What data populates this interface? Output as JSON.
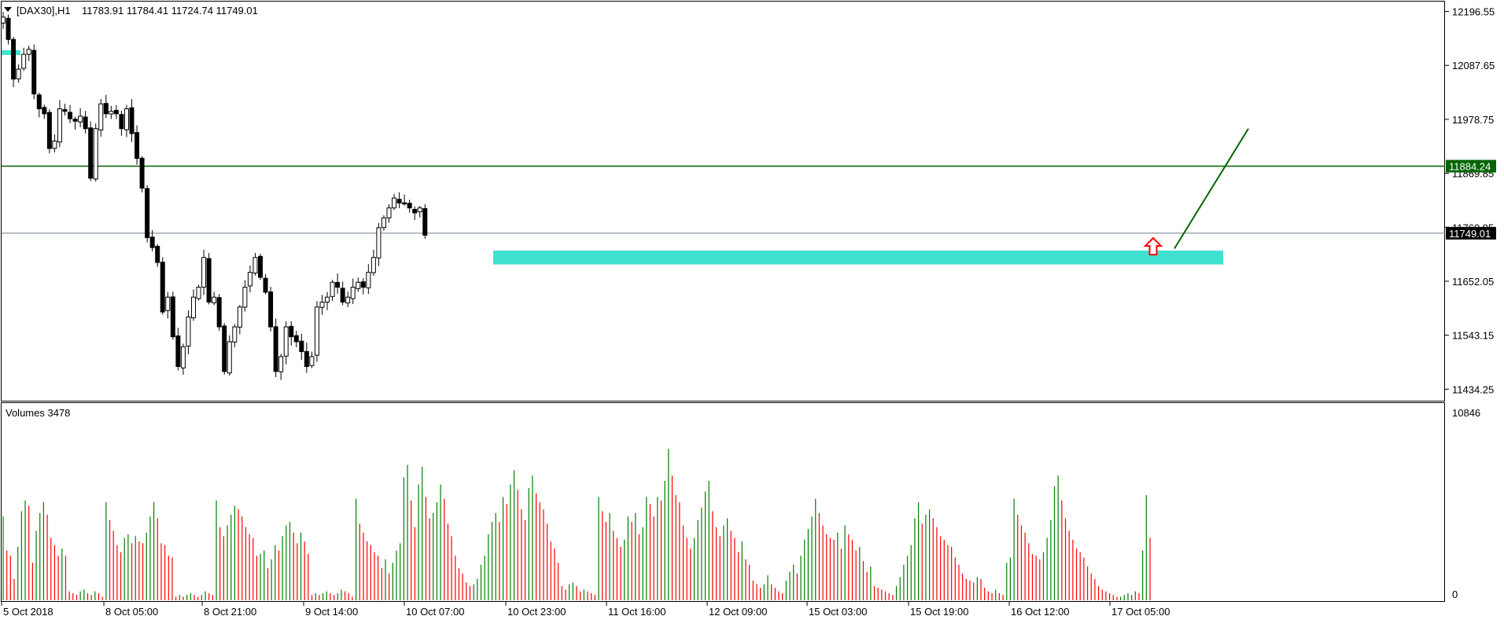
{
  "header": {
    "symbol": "[DAX30],H1",
    "ohlc": "11783.91 11784.41 11724.74 11749.01"
  },
  "volume_panel": {
    "title": "Volumes 3478",
    "scale_max": "10846",
    "scale_min": "0"
  },
  "colors": {
    "background": "#ffffff",
    "candle": "#000000",
    "zone": "#40e0d0",
    "resistance_line": "#006400",
    "trend_line": "#006400",
    "current_price_line": "#708090",
    "volume_up": "#008000",
    "volume_down": "#ff0000",
    "arrow": "#ff0000"
  },
  "chart_data": [
    {
      "type": "candlestick",
      "title": "[DAX30],H1",
      "y_ticks": [
        "12196.55",
        "12087.65",
        "11978.75",
        "11869.85",
        "11760.95",
        "11652.05",
        "11543.15",
        "11434.25"
      ],
      "ylim": [
        11411,
        12218
      ],
      "x_ticks": [
        "5 Oct 2018",
        "8 Oct 05:00",
        "8 Oct 21:00",
        "9 Oct 14:00",
        "10 Oct 07:00",
        "10 Oct 23:00",
        "11 Oct 16:00",
        "12 Oct 09:00",
        "15 Oct 03:00",
        "15 Oct 19:00",
        "16 Oct 12:00",
        "17 Oct 05:00"
      ],
      "y_range_markers": [
        {
          "label": "11884.24",
          "value": 11884.24,
          "style": "horizontal line, green background label"
        },
        {
          "label": "11749.01",
          "value": 11749.01,
          "style": "current price, black background label"
        }
      ],
      "support_zone": {
        "low": 11686,
        "high": 11714
      },
      "trend_projection": {
        "from_value": 11718,
        "to_value": 11960
      },
      "close_path": [
        12185,
        12140,
        12060,
        12080,
        12110,
        12120,
        12030,
        12000,
        11990,
        11920,
        11935,
        12000,
        11995,
        11980,
        11975,
        11985,
        11960,
        11860,
        11960,
        12010,
        11990,
        11995,
        11990,
        11960,
        12000,
        11950,
        11900,
        11840,
        11740,
        11720,
        11690,
        11590,
        11620,
        11540,
        11480,
        11520,
        11580,
        11620,
        11640,
        11700,
        11610,
        11620,
        11560,
        11470,
        11530,
        11560,
        11600,
        11640,
        11670,
        11700,
        11660,
        11630,
        11560,
        11470,
        11500,
        11560,
        11540,
        11530,
        11510,
        11480,
        11500,
        11600,
        11610,
        11620,
        11650,
        11640,
        11610,
        11620,
        11640,
        11650,
        11640,
        11670,
        11700,
        11760,
        11780,
        11800,
        11820,
        11810,
        11810,
        11800,
        11790,
        11800,
        11745
      ]
    },
    {
      "type": "bar",
      "title": "Volumes 3478",
      "ylim": [
        0,
        10846
      ],
      "up_color": "#008000",
      "down_color": "#ff0000",
      "values": [
        4700,
        2800,
        2500,
        1200,
        3000,
        5000,
        5600,
        5300,
        2100,
        3900,
        4900,
        5500,
        4800,
        3500,
        3100,
        2500,
        2900,
        2500,
        500,
        400,
        300,
        500,
        600,
        400,
        300,
        500,
        400,
        200,
        5500,
        4500,
        3900,
        3100,
        2700,
        3500,
        3700,
        3200,
        3600,
        3300,
        3200,
        3800,
        4700,
        5500,
        4600,
        3200,
        3100,
        2500,
        2400,
        200,
        300,
        200,
        300,
        400,
        300,
        200,
        300,
        500,
        400,
        300,
        5600,
        4100,
        3600,
        4200,
        4800,
        5300,
        5100,
        4700,
        4100,
        3700,
        3500,
        2500,
        2600,
        2800,
        1800,
        2300,
        3100,
        2800,
        3600,
        4200,
        4400,
        3800,
        3200,
        3800,
        3300,
        2600,
        300,
        400,
        300,
        400,
        500,
        400,
        300,
        400,
        600,
        500,
        400,
        200,
        5700,
        4300,
        3800,
        3300,
        3100,
        2700,
        2500,
        1800,
        2300,
        1500,
        2100,
        2800,
        3200,
        6900,
        7600,
        5600,
        4100,
        6500,
        7500,
        5800,
        4600,
        4900,
        5500,
        6500,
        5700,
        4300,
        3600,
        2500,
        1800,
        1500,
        1000,
        800,
        900,
        1200,
        2000,
        2500,
        3700,
        4400,
        4900,
        4400,
        5800,
        5400,
        6500,
        7300,
        6200,
        5100,
        4500,
        6300,
        7000,
        6000,
        5500,
        5100,
        4300,
        3300,
        2900,
        2100,
        800,
        600,
        900,
        1000,
        800,
        500,
        600,
        500,
        400,
        300,
        5800,
        5000,
        4400,
        4900,
        3900,
        3500,
        3000,
        3400,
        4700,
        4400,
        4900,
        3700,
        4100,
        5800,
        5400,
        4700,
        5800,
        5600,
        6700,
        8500,
        7000,
        5900,
        5500,
        4200,
        3500,
        2900,
        3500,
        4500,
        5200,
        6100,
        6700,
        5000,
        4100,
        3600,
        4200,
        4600,
        3900,
        3500,
        2700,
        3300,
        2300,
        2000,
        1100,
        900,
        700,
        900,
        1400,
        900,
        700,
        500,
        400,
        1100,
        1600,
        2000,
        1500,
        2500,
        3400,
        4000,
        4700,
        5700,
        4900,
        4200,
        3700,
        3500,
        3400,
        3800,
        2900,
        4200,
        3700,
        3400,
        2800,
        3000,
        2200,
        1600,
        1900,
        800,
        700,
        600,
        500,
        400,
        300,
        800,
        1300,
        2000,
        2500,
        3100,
        4600,
        5500,
        4300,
        4800,
        5100,
        4600,
        4100,
        3600,
        3400,
        3100,
        3000,
        2400,
        2000,
        1500,
        1200,
        1100,
        1000,
        1300,
        1200,
        700,
        500,
        400,
        600,
        400,
        300,
        2100,
        2400,
        5700,
        4800,
        4200,
        3800,
        3200,
        2600,
        2500,
        2300,
        2700,
        3500,
        4500,
        6400,
        7000,
        5600,
        4600,
        3900,
        3400,
        2900,
        2700,
        2400,
        1900,
        1500,
        1200,
        800,
        600,
        500,
        400,
        300,
        200,
        200,
        300,
        400,
        300,
        500,
        400,
        2800,
        5900,
        3500
      ]
    }
  ]
}
